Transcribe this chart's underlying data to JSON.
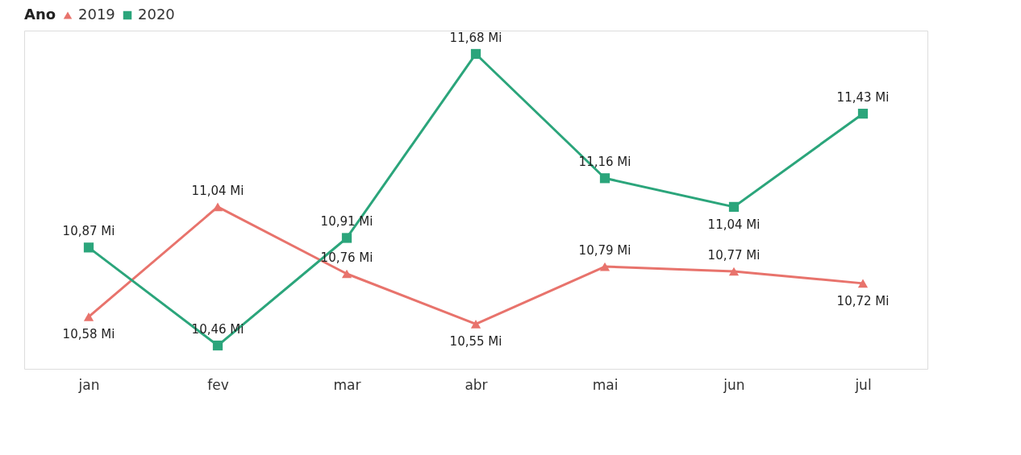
{
  "chart_data": {
    "type": "line",
    "legend_title": "Ano",
    "legend": "top left",
    "grid": false,
    "tick_labels": "x",
    "categories": [
      "jan",
      "fev",
      "mar",
      "abr",
      "mai",
      "jun",
      "jul"
    ],
    "series": [
      {
        "name": "2019",
        "color": "#e8736c",
        "marker": "triangle",
        "values": [
          10.58,
          11.04,
          10.76,
          10.55,
          10.79,
          10.77,
          10.72
        ],
        "value_labels": [
          "10,58 Mi",
          "11,04 Mi",
          "10,76 Mi",
          "10,55 Mi",
          "10,79 Mi",
          "10,77 Mi",
          "10,72 Mi"
        ]
      },
      {
        "name": "2020",
        "color": "#2ba57b",
        "marker": "square",
        "values": [
          10.87,
          10.46,
          10.91,
          11.68,
          11.16,
          11.04,
          11.43
        ],
        "value_labels": [
          "10,87 Mi",
          "10,46 Mi",
          "10,91 Mi",
          "11,68 Mi",
          "11,16 Mi",
          "11,04 Mi",
          "11,43 Mi"
        ]
      }
    ]
  }
}
